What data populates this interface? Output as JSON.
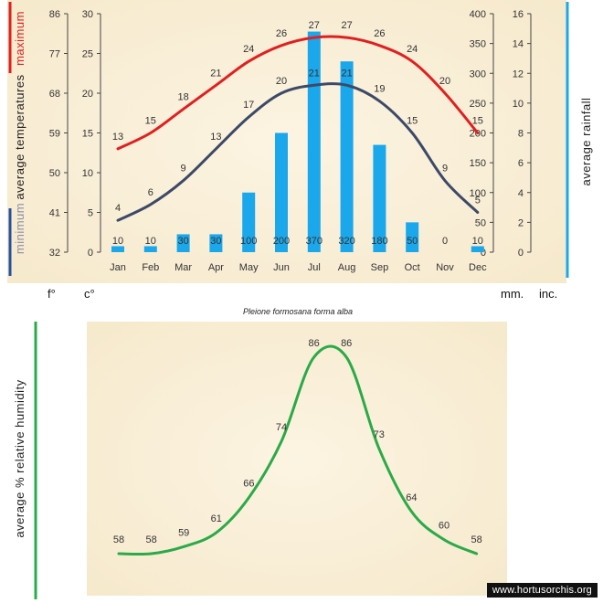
{
  "caption": "Pleione formosana forma alba",
  "watermark": "www.hortusorchis.org",
  "colors": {
    "max_line": "#e02020",
    "min_line": "#3c4a68",
    "rain_bar": "#1aa7ec",
    "humidity_line": "#2aaa48",
    "green_rule": "#2aaa48",
    "blue_rule": "#1aa7ec",
    "red_rule": "#e02020",
    "dark_blue_rule": "#2850a0",
    "panel_bg": "#fbf2de"
  },
  "temperature_titles": {
    "maximum": "maximum",
    "average_temperatures": "average  temperatures",
    "minimum": "minimum"
  },
  "rainfall_title": "average  rainfall",
  "humidity_title": "average %  relative humidity",
  "units": {
    "fahrenheit": "f°",
    "celsius": "c°",
    "mm": "mm.",
    "inches": "inc."
  },
  "chart_data": [
    {
      "type": "line+bar",
      "categories": [
        "Jan",
        "Feb",
        "Mar",
        "Apr",
        "May",
        "Jun",
        "Jul",
        "Aug",
        "Sep",
        "Oct",
        "Nov",
        "Dec"
      ],
      "series": [
        {
          "name": "maximum",
          "kind": "line",
          "axis": "celsius",
          "values": [
            13,
            15,
            18,
            21,
            24,
            26,
            27,
            27,
            26,
            24,
            20,
            15
          ]
        },
        {
          "name": "minimum",
          "kind": "line",
          "axis": "celsius",
          "values": [
            4,
            6,
            9,
            13,
            17,
            20,
            21,
            21,
            19,
            15,
            9,
            5
          ]
        },
        {
          "name": "average rainfall",
          "kind": "bar",
          "axis": "mm",
          "values": [
            10,
            10,
            30,
            30,
            100,
            200,
            370,
            320,
            180,
            50,
            0,
            10
          ]
        }
      ],
      "axes": {
        "fahrenheit": {
          "ticks": [
            32,
            41,
            50,
            59,
            68,
            77,
            86
          ]
        },
        "celsius": {
          "ylim": [
            0,
            30
          ],
          "ticks": [
            0,
            5,
            10,
            15,
            20,
            25,
            30
          ]
        },
        "mm": {
          "ylim": [
            0,
            400
          ],
          "ticks": [
            0,
            50,
            100,
            150,
            200,
            250,
            300,
            350,
            400
          ]
        },
        "inches": {
          "ticks": [
            0,
            2,
            4,
            6,
            8,
            10,
            12,
            14,
            16
          ]
        }
      },
      "grid": false
    },
    {
      "type": "line",
      "categories": [
        "Jan",
        "Feb",
        "Mar",
        "Apr",
        "May",
        "Jun",
        "Jul",
        "Aug",
        "Sep",
        "Oct",
        "Nov",
        "Dec"
      ],
      "series": [
        {
          "name": "average % relative humidity",
          "values": [
            58,
            58,
            59,
            61,
            66,
            74,
            86,
            86,
            73,
            64,
            60,
            58
          ]
        }
      ],
      "grid": false
    }
  ]
}
